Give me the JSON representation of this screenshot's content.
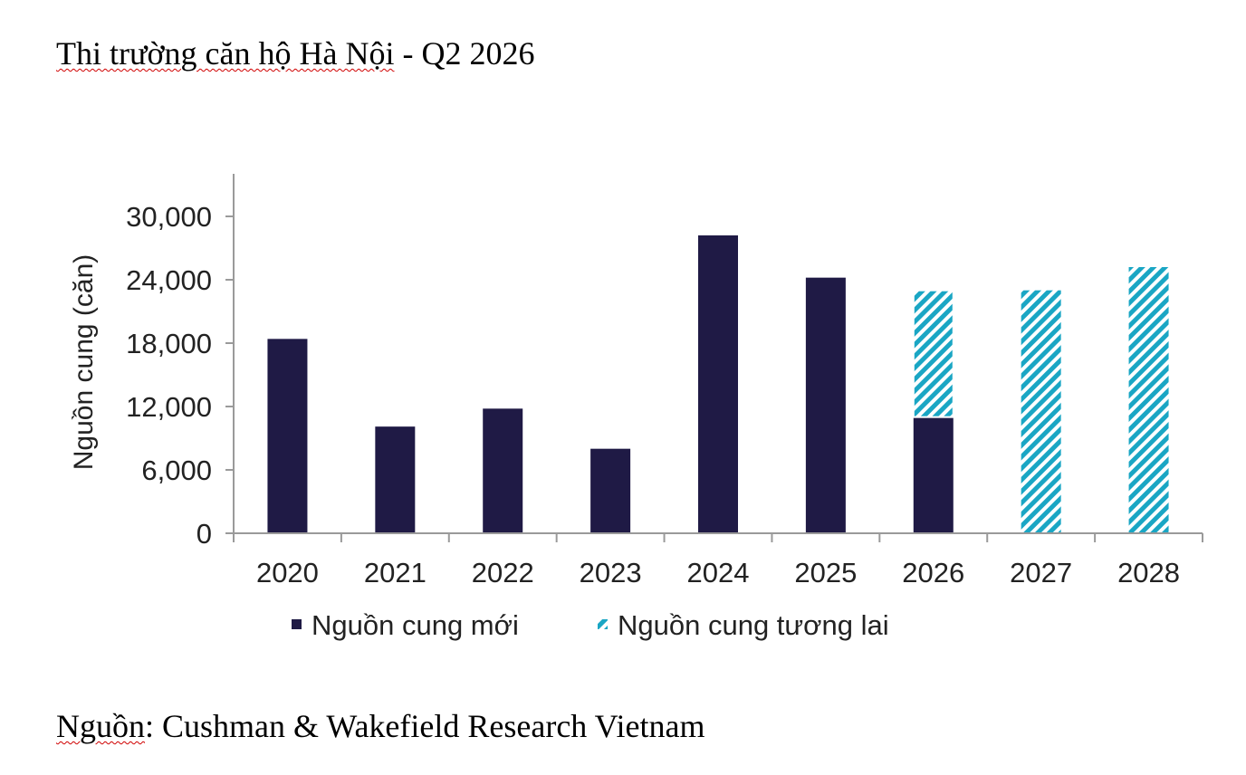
{
  "document": {
    "title_spell_part": "Thi trường căn hộ Hà Nội",
    "title_rest": " - Q2 2026",
    "source_spell_part": "Nguồn",
    "source_rest": ": Cushman & Wakefield Research Vietnam"
  },
  "colors": {
    "new_supply": "#1f1a45",
    "future_supply": "#1aa6c4",
    "axis": "#9a9a9a"
  },
  "chart_data": {
    "type": "bar",
    "stacked": true,
    "categories": [
      "2020",
      "2021",
      "2022",
      "2023",
      "2024",
      "2025",
      "2026",
      "2027",
      "2028"
    ],
    "series": [
      {
        "name": "Nguồn cung mới",
        "values": [
          18400,
          10100,
          11800,
          8000,
          28200,
          24200,
          11000,
          0,
          0
        ]
      },
      {
        "name": "Nguồn cung tương lai",
        "values": [
          0,
          0,
          0,
          0,
          0,
          0,
          12000,
          23000,
          25200
        ]
      }
    ],
    "ylabel": "Nguồn cung (căn)",
    "ylim": [
      0,
      30000
    ],
    "yticks": [
      0,
      6000,
      12000,
      18000,
      24000,
      30000
    ],
    "ytick_labels": [
      "0",
      "6,000",
      "12,000",
      "18,000",
      "24,000",
      "30,000"
    ],
    "grid": false,
    "legend_position": "bottom"
  }
}
